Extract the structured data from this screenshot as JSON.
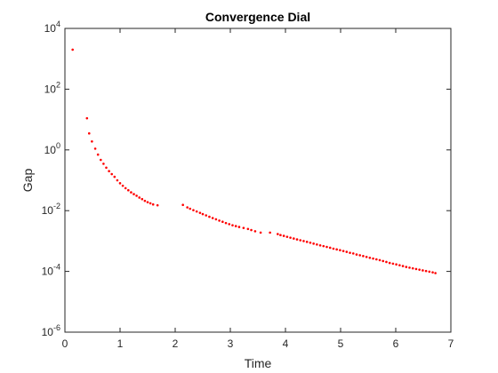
{
  "chart_data": {
    "type": "scatter",
    "title": "Convergence Dial",
    "xlabel": "Time",
    "ylabel": "Gap",
    "xlim": [
      0,
      7
    ],
    "ylim": [
      1e-06,
      10000.0
    ],
    "yscale": "log",
    "grid": false,
    "legend": "none",
    "x_ticks": [
      "0",
      "1",
      "2",
      "3",
      "4",
      "5",
      "6",
      "7"
    ],
    "y_ticks": [
      {
        "base": "10",
        "exp": "-6"
      },
      {
        "base": "10",
        "exp": "-4"
      },
      {
        "base": "10",
        "exp": "-2"
      },
      {
        "base": "10",
        "exp": "0"
      },
      {
        "base": "10",
        "exp": "2"
      },
      {
        "base": "10",
        "exp": "4"
      }
    ],
    "marker_color": "#ff0000",
    "series": [
      {
        "x": [
          0.14,
          0.4,
          0.44,
          0.49,
          0.55,
          0.6,
          0.65,
          0.7,
          0.75,
          0.8,
          0.85,
          0.9,
          0.95,
          1.0,
          1.05,
          1.1,
          1.15,
          1.2,
          1.25,
          1.3,
          1.35,
          1.4,
          1.45,
          1.5,
          1.55,
          1.6,
          1.68,
          2.14,
          2.22,
          2.27,
          2.33,
          2.39,
          2.45,
          2.5,
          2.56,
          2.62,
          2.68,
          2.74,
          2.8,
          2.86,
          2.92,
          2.98,
          3.04,
          3.1,
          3.16,
          3.24,
          3.32,
          3.38,
          3.45,
          3.55,
          3.72,
          3.86,
          3.91,
          3.97,
          4.03,
          4.09,
          4.15,
          4.21,
          4.27,
          4.33,
          4.39,
          4.45,
          4.51,
          4.57,
          4.63,
          4.69,
          4.75,
          4.81,
          4.87,
          4.93,
          4.99,
          5.05,
          5.11,
          5.17,
          5.23,
          5.29,
          5.35,
          5.41,
          5.47,
          5.53,
          5.59,
          5.65,
          5.71,
          5.77,
          5.83,
          5.89,
          5.95,
          6.01,
          6.07,
          6.13,
          6.19,
          6.25,
          6.31,
          6.37,
          6.43,
          6.49,
          6.55,
          6.61,
          6.67,
          6.72
        ],
        "y": [
          2000,
          11,
          3.5,
          1.9,
          1.1,
          0.7,
          0.47,
          0.35,
          0.26,
          0.2,
          0.16,
          0.13,
          0.1,
          0.08,
          0.066,
          0.055,
          0.047,
          0.04,
          0.035,
          0.031,
          0.027,
          0.024,
          0.021,
          0.019,
          0.0175,
          0.016,
          0.015,
          0.0155,
          0.0128,
          0.0116,
          0.0104,
          0.0094,
          0.0085,
          0.0077,
          0.007,
          0.0063,
          0.0057,
          0.0052,
          0.0047,
          0.0043,
          0.0039,
          0.0036,
          0.0033,
          0.0031,
          0.0029,
          0.0027,
          0.0025,
          0.0023,
          0.0021,
          0.0019,
          0.0019,
          0.0017,
          0.00157,
          0.00148,
          0.00138,
          0.00129,
          0.00121,
          0.00113,
          0.00106,
          0.001,
          0.00094,
          0.00088,
          0.00082,
          0.00077,
          0.00072,
          0.00068,
          0.00064,
          0.0006,
          0.00056,
          0.00053,
          0.0005,
          0.00047,
          0.00044,
          0.00041,
          0.00039,
          0.00036,
          0.00034,
          0.00032,
          0.0003,
          0.00028,
          0.000265,
          0.00025,
          0.000235,
          0.00022,
          0.000205,
          0.00019,
          0.00018,
          0.00017,
          0.00016,
          0.00015,
          0.00014,
          0.000133,
          0.000126,
          0.00012,
          0.000114,
          0.000108,
          0.000103,
          9.8e-05,
          9.3e-05,
          8.8e-05
        ]
      }
    ]
  }
}
